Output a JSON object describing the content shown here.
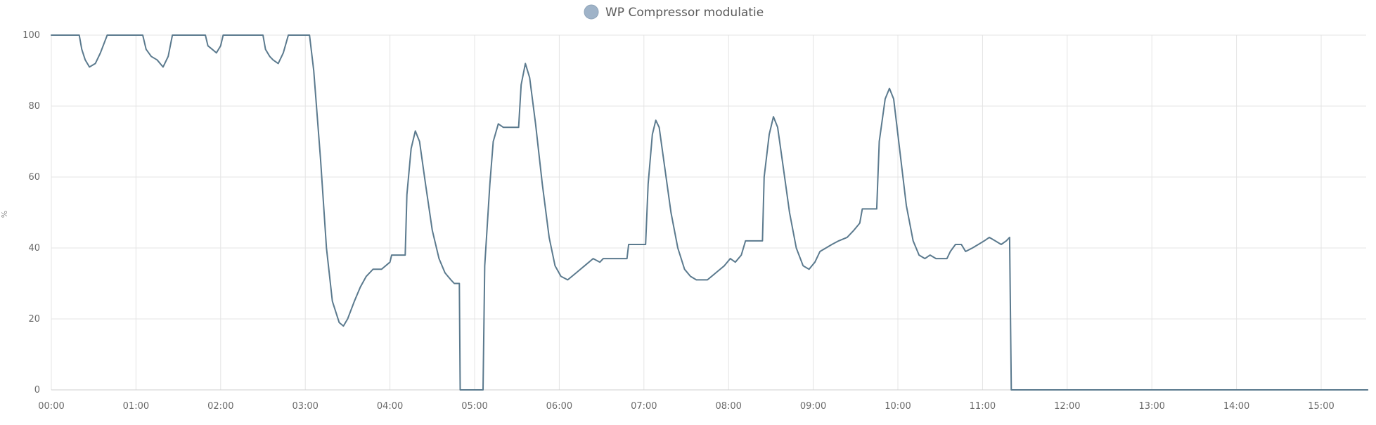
{
  "chart_data": {
    "type": "line",
    "title": "",
    "xlabel": "",
    "ylabel": "%",
    "legend": {
      "position": "top-center",
      "entries": [
        "WP Compressor modulatie"
      ]
    },
    "xlim": [
      0,
      15.55
    ],
    "ylim": [
      0,
      100
    ],
    "grid": true,
    "x_ticks": [
      "00:00",
      "01:00",
      "02:00",
      "03:00",
      "04:00",
      "05:00",
      "06:00",
      "07:00",
      "08:00",
      "09:00",
      "10:00",
      "11:00",
      "12:00",
      "13:00",
      "14:00",
      "15:00"
    ],
    "y_ticks": [
      "0",
      "20",
      "40",
      "60",
      "80",
      "100"
    ],
    "colors": {
      "line": "#5b7a8e",
      "legend_marker": "#9fb3c8",
      "grid": "#e4e4e4"
    },
    "series": [
      {
        "name": "WP Compressor modulatie",
        "interpolation": "step-after",
        "points": [
          [
            0.0,
            100
          ],
          [
            0.33,
            100
          ],
          [
            0.36,
            96
          ],
          [
            0.4,
            93
          ],
          [
            0.45,
            91
          ],
          [
            0.52,
            92
          ],
          [
            0.58,
            95
          ],
          [
            0.66,
            100
          ],
          [
            1.08,
            100
          ],
          [
            1.12,
            96
          ],
          [
            1.18,
            94
          ],
          [
            1.25,
            93
          ],
          [
            1.32,
            91
          ],
          [
            1.38,
            94
          ],
          [
            1.43,
            100
          ],
          [
            1.82,
            100
          ],
          [
            1.85,
            97
          ],
          [
            1.9,
            96
          ],
          [
            1.95,
            95
          ],
          [
            2.0,
            97
          ],
          [
            2.03,
            100
          ],
          [
            2.5,
            100
          ],
          [
            2.53,
            96
          ],
          [
            2.58,
            94
          ],
          [
            2.62,
            93
          ],
          [
            2.68,
            92
          ],
          [
            2.74,
            95
          ],
          [
            2.8,
            100
          ],
          [
            3.05,
            100
          ],
          [
            3.1,
            90
          ],
          [
            3.18,
            65
          ],
          [
            3.25,
            40
          ],
          [
            3.32,
            25
          ],
          [
            3.4,
            19
          ],
          [
            3.45,
            18
          ],
          [
            3.5,
            20
          ],
          [
            3.58,
            25
          ],
          [
            3.65,
            29
          ],
          [
            3.72,
            32
          ],
          [
            3.8,
            34
          ],
          [
            3.9,
            34
          ],
          [
            4.0,
            36
          ],
          [
            4.02,
            38
          ],
          [
            4.18,
            38
          ],
          [
            4.2,
            55
          ],
          [
            4.25,
            68
          ],
          [
            4.3,
            73
          ],
          [
            4.35,
            70
          ],
          [
            4.42,
            58
          ],
          [
            4.5,
            45
          ],
          [
            4.58,
            37
          ],
          [
            4.65,
            33
          ],
          [
            4.72,
            31
          ],
          [
            4.76,
            30
          ],
          [
            4.82,
            30
          ],
          [
            4.83,
            0
          ],
          [
            5.1,
            0
          ],
          [
            5.12,
            35
          ],
          [
            5.18,
            58
          ],
          [
            5.22,
            70
          ],
          [
            5.28,
            75
          ],
          [
            5.34,
            74
          ],
          [
            5.52,
            74
          ],
          [
            5.55,
            86
          ],
          [
            5.6,
            92
          ],
          [
            5.65,
            88
          ],
          [
            5.72,
            75
          ],
          [
            5.8,
            58
          ],
          [
            5.88,
            43
          ],
          [
            5.95,
            35
          ],
          [
            6.02,
            32
          ],
          [
            6.1,
            31
          ],
          [
            6.2,
            33
          ],
          [
            6.3,
            35
          ],
          [
            6.4,
            37
          ],
          [
            6.48,
            36
          ],
          [
            6.52,
            37
          ],
          [
            6.8,
            37
          ],
          [
            6.82,
            41
          ],
          [
            7.02,
            41
          ],
          [
            7.05,
            58
          ],
          [
            7.1,
            72
          ],
          [
            7.14,
            76
          ],
          [
            7.18,
            74
          ],
          [
            7.25,
            62
          ],
          [
            7.32,
            50
          ],
          [
            7.4,
            40
          ],
          [
            7.48,
            34
          ],
          [
            7.55,
            32
          ],
          [
            7.62,
            31
          ],
          [
            7.75,
            31
          ],
          [
            7.85,
            33
          ],
          [
            7.95,
            35
          ],
          [
            8.02,
            37
          ],
          [
            8.08,
            36
          ],
          [
            8.15,
            38
          ],
          [
            8.2,
            42
          ],
          [
            8.4,
            42
          ],
          [
            8.42,
            60
          ],
          [
            8.48,
            72
          ],
          [
            8.53,
            77
          ],
          [
            8.58,
            74
          ],
          [
            8.65,
            62
          ],
          [
            8.72,
            50
          ],
          [
            8.8,
            40
          ],
          [
            8.88,
            35
          ],
          [
            8.95,
            34
          ],
          [
            9.02,
            36
          ],
          [
            9.08,
            39
          ],
          [
            9.15,
            40
          ],
          [
            9.22,
            41
          ],
          [
            9.3,
            42
          ],
          [
            9.4,
            43
          ],
          [
            9.48,
            45
          ],
          [
            9.55,
            47
          ],
          [
            9.58,
            51
          ],
          [
            9.75,
            51
          ],
          [
            9.78,
            70
          ],
          [
            9.85,
            82
          ],
          [
            9.9,
            85
          ],
          [
            9.95,
            82
          ],
          [
            10.02,
            68
          ],
          [
            10.1,
            52
          ],
          [
            10.18,
            42
          ],
          [
            10.25,
            38
          ],
          [
            10.32,
            37
          ],
          [
            10.38,
            38
          ],
          [
            10.45,
            37
          ],
          [
            10.58,
            37
          ],
          [
            10.62,
            39
          ],
          [
            10.68,
            41
          ],
          [
            10.75,
            41
          ],
          [
            10.8,
            39
          ],
          [
            10.88,
            40
          ],
          [
            10.95,
            41
          ],
          [
            11.02,
            42
          ],
          [
            11.08,
            43
          ],
          [
            11.15,
            42
          ],
          [
            11.22,
            41
          ],
          [
            11.28,
            42
          ],
          [
            11.32,
            43
          ],
          [
            11.34,
            0
          ],
          [
            15.55,
            0
          ]
        ]
      }
    ]
  }
}
